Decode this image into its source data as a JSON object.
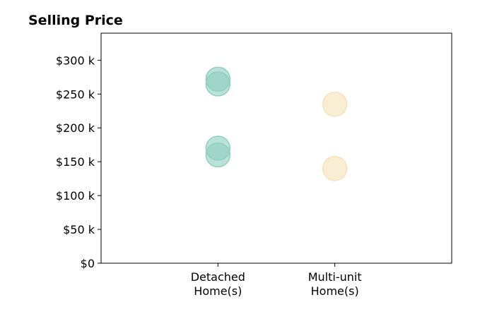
{
  "chart_data": {
    "type": "scatter",
    "title": "Selling Price",
    "xlabel": "",
    "ylabel": "",
    "categories": [
      [
        "Detached",
        "Home(s)"
      ],
      [
        "Multi-unit",
        "Home(s)"
      ]
    ],
    "xlim": [
      -1,
      2
    ],
    "ylim": [
      0,
      340000
    ],
    "y_ticks": [
      0,
      50000,
      100000,
      150000,
      200000,
      250000,
      300000
    ],
    "y_tick_labels": [
      "$0",
      "$50 k",
      "$100 k",
      "$150 k",
      "$200 k",
      "$250 k",
      "$300 k"
    ],
    "grid": false,
    "series": [
      {
        "color": "#8ecfc0",
        "points": [
          {
            "category": 0,
            "y": 272000
          },
          {
            "category": 0,
            "y": 265000
          },
          {
            "category": 0,
            "y": 170000
          },
          {
            "category": 0,
            "y": 160000
          }
        ]
      },
      {
        "color": "#f5e3b8",
        "points": [
          {
            "category": 1,
            "y": 235000
          },
          {
            "category": 1,
            "y": 140000
          }
        ]
      }
    ]
  }
}
